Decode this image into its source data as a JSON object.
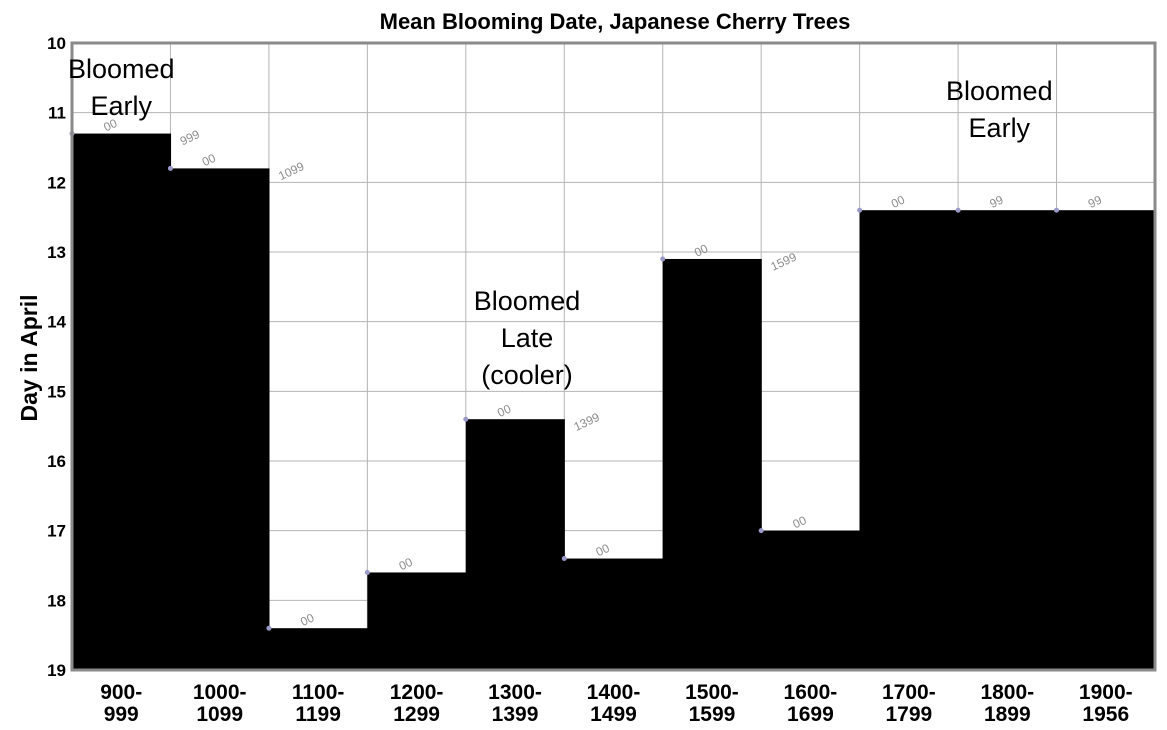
{
  "chart_data": {
    "type": "bar",
    "title": "Mean Blooming Date, Japanese Cherry Trees",
    "ylabel": "Day in April",
    "xlabel": "",
    "categories": [
      "900-999",
      "1000-1099",
      "1100-1199",
      "1200-1299",
      "1300-1399",
      "1400-1499",
      "1500-1599",
      "1600-1699",
      "1700-1799",
      "1800-1899",
      "1900-1956"
    ],
    "values": [
      11.3,
      11.8,
      18.4,
      17.6,
      15.4,
      17.4,
      13.1,
      17.0,
      12.4,
      12.4,
      12.4
    ],
    "ylim": [
      10,
      19
    ],
    "y_inverted": true,
    "yticks": [
      "10",
      "11",
      "12",
      "13",
      "14",
      "15",
      "16",
      "17",
      "18",
      "19"
    ],
    "grid": true,
    "bar_color": "#000000",
    "point_labels": [
      {
        "text": "00",
        "category_index": 0,
        "rotated": false
      },
      {
        "text": "999",
        "category_index": 1,
        "rotated": true
      },
      {
        "text": "00",
        "category_index": 1,
        "rotated": false
      },
      {
        "text": "1099",
        "category_index": 2,
        "rotated": true
      },
      {
        "text": "00",
        "category_index": 2,
        "rotated": false
      },
      {
        "text": "00",
        "category_index": 3,
        "rotated": false
      },
      {
        "text": "00",
        "category_index": 4,
        "rotated": false
      },
      {
        "text": "1399",
        "category_index": 5,
        "rotated": true
      },
      {
        "text": "00",
        "category_index": 5,
        "rotated": false
      },
      {
        "text": "00",
        "category_index": 6,
        "rotated": false
      },
      {
        "text": "1599",
        "category_index": 7,
        "rotated": true
      },
      {
        "text": "00",
        "category_index": 7,
        "rotated": false
      },
      {
        "text": "00",
        "category_index": 8,
        "rotated": false
      },
      {
        "text": "99",
        "category_index": 9,
        "rotated": false
      },
      {
        "text": "99",
        "category_index": 10,
        "rotated": false
      }
    ],
    "annotations": [
      {
        "lines": [
          "Bloomed",
          "Early"
        ],
        "category_index": 0
      },
      {
        "lines": [
          "Bloomed",
          "Late",
          "(cooler)"
        ],
        "category_index": 4
      },
      {
        "lines": [
          "Bloomed",
          "Early"
        ],
        "category_index": 9
      }
    ]
  }
}
